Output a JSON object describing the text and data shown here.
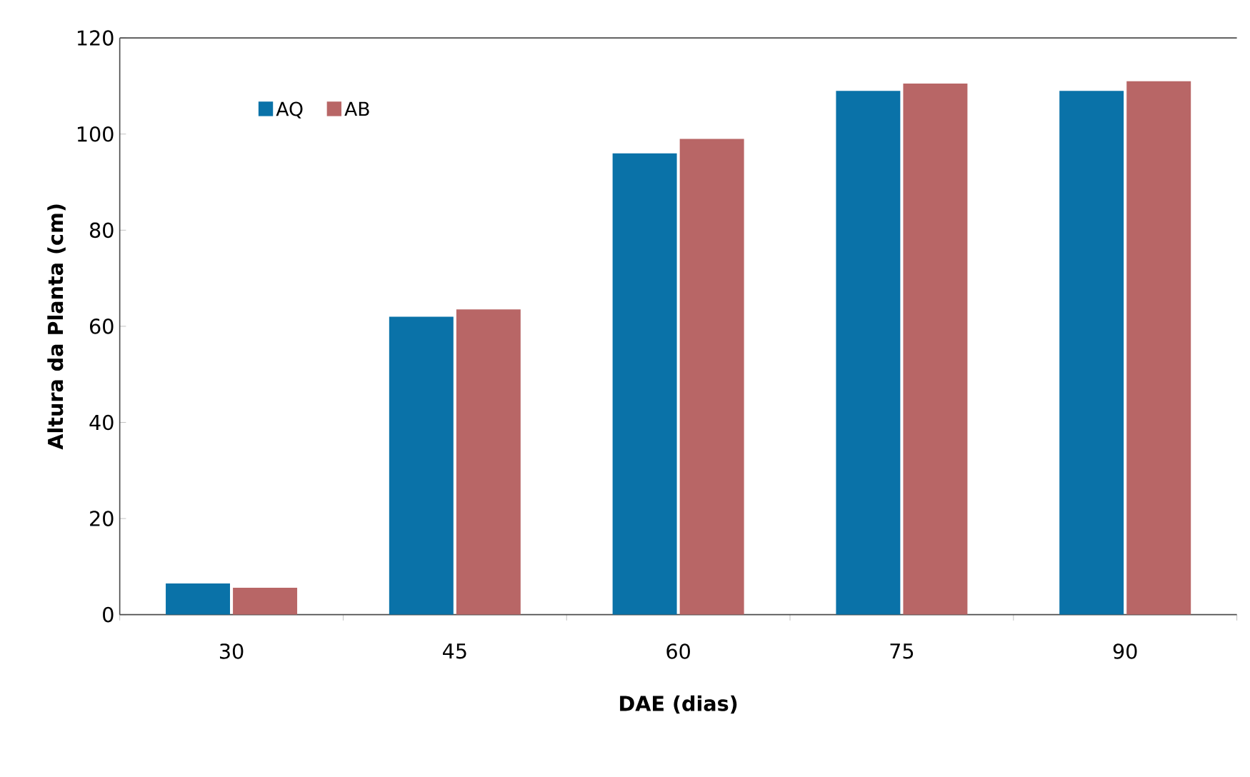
{
  "chart_data": {
    "type": "bar",
    "xlabel": "DAE (dias)",
    "ylabel": "Altura da Planta (cm)",
    "categories": [
      "30",
      "45",
      "60",
      "75",
      "90"
    ],
    "series": [
      {
        "name": "AQ",
        "color": "#0a72a8",
        "values": [
          6.5,
          62,
          96,
          109,
          109
        ]
      },
      {
        "name": "AB",
        "color": "#b86666",
        "values": [
          5.6,
          63.5,
          99,
          110.5,
          111
        ]
      }
    ],
    "ylim": [
      0,
      120
    ],
    "yticks": [
      0,
      20,
      40,
      60,
      80,
      100,
      120
    ],
    "legend": "top left"
  }
}
